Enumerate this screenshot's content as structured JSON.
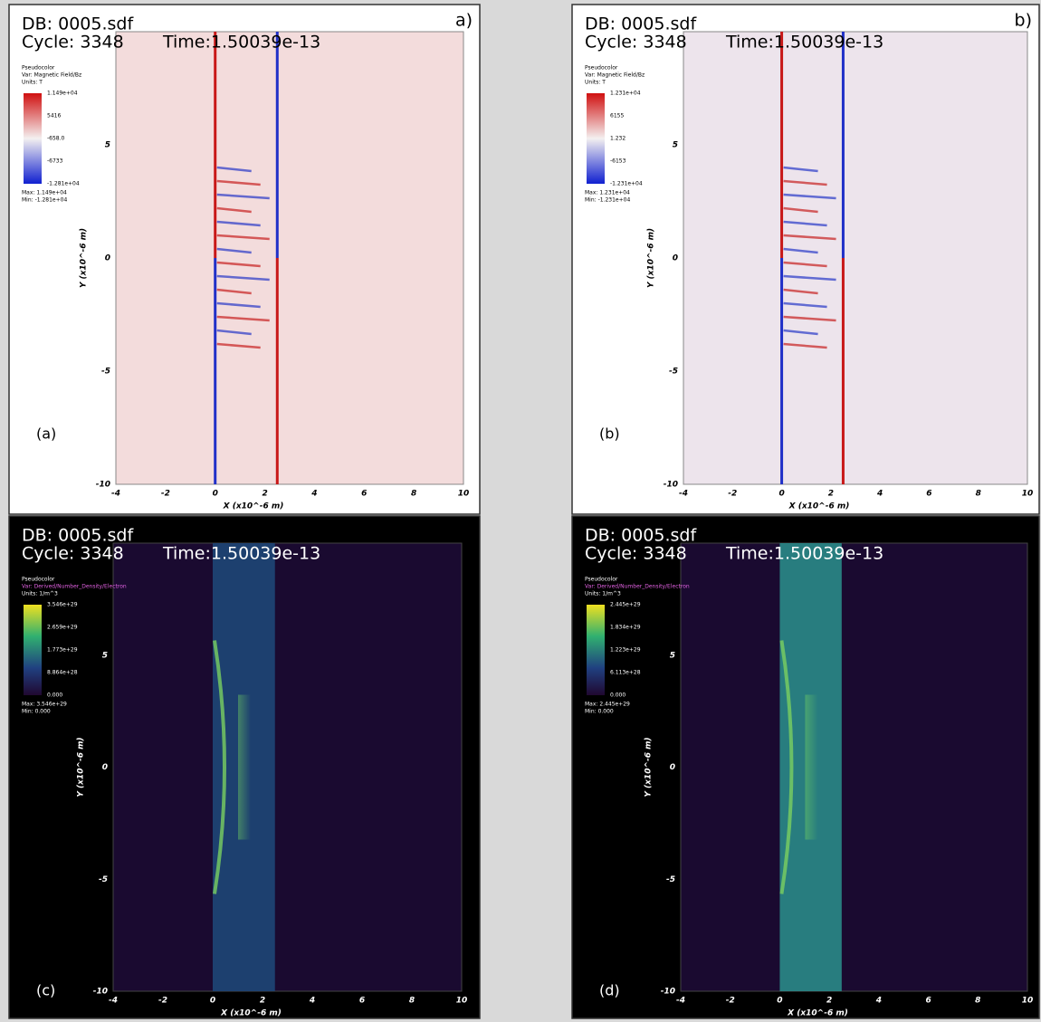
{
  "panels": [
    {
      "corner_label": "a)",
      "db": "DB: 0005.sdf",
      "cycle": "Cycle: 3348",
      "time": "Time:1.50039e-13",
      "legend": {
        "lines": [
          "Pseudocolor",
          "Var: Magnetic Field/Bz",
          "Units: T"
        ],
        "values": [
          "1.149e+04",
          "5416",
          "-658.0",
          "-6733",
          "-1.281e+04"
        ],
        "max": "Max: 1.149e+04",
        "min": "Min: -1.281e+04"
      },
      "panel_label": "(a)",
      "x_ticks": [
        "-4",
        "-2",
        "0",
        "2",
        "4",
        "6",
        "8",
        "10"
      ],
      "y_ticks": [
        "5",
        "0",
        "-5",
        "-10"
      ],
      "x_label": "X (x10^-6 m)",
      "y_label": "Y (x10^-6 m)"
    },
    {
      "corner_label": "b)",
      "db": "DB: 0005.sdf",
      "cycle": "Cycle: 3348",
      "time": "Time:1.50039e-13",
      "legend": {
        "lines": [
          "Pseudocolor",
          "Var: Magnetic Field/Bz",
          "Units: T"
        ],
        "values": [
          "1.231e+04",
          "6155",
          "1.232",
          "-6153",
          "-1.231e+04"
        ],
        "max": "Max: 1.231e+04",
        "min": "Min: -1.231e+04"
      },
      "panel_label": "(b)",
      "x_ticks": [
        "-4",
        "-2",
        "0",
        "2",
        "4",
        "6",
        "8",
        "10"
      ],
      "y_ticks": [
        "5",
        "0",
        "-5",
        "-10"
      ],
      "x_label": "X (x10^-6 m)",
      "y_label": "Y (x10^-6 m)"
    },
    {
      "db": "DB: 0005.sdf",
      "cycle": "Cycle: 3348",
      "time": "Time:1.50039e-13",
      "legend": {
        "lines": [
          "Pseudocolor",
          "Var: Derived/Number_Density/Electron",
          "Units: 1/m^3"
        ],
        "values": [
          "3.546e+29",
          "2.659e+29",
          "1.773e+29",
          "8.864e+28",
          "0.000"
        ],
        "max": "Max: 3.546e+29",
        "min": "Min: 0.000"
      },
      "panel_label": "(c)",
      "x_ticks": [
        "-4",
        "-2",
        "0",
        "2",
        "4",
        "6",
        "8",
        "10"
      ],
      "y_ticks": [
        "5",
        "0",
        "-5",
        "-10"
      ],
      "x_label": "X (x10^-6 m)",
      "y_label": "Y (x10^-6 m)"
    },
    {
      "db": "DB: 0005.sdf",
      "cycle": "Cycle: 3348",
      "time": "Time:1.50039e-13",
      "legend": {
        "lines": [
          "Pseudocolor",
          "Var: Derived/Number_Density/Electron",
          "Units: 1/m^3"
        ],
        "values": [
          "2.445e+29",
          "1.834e+29",
          "1.223e+29",
          "6.113e+28",
          "0.000"
        ],
        "max": "Max: 2.445e+29",
        "min": "Min: 0.000"
      },
      "panel_label": "(d)",
      "x_ticks": [
        "-4",
        "-2",
        "0",
        "2",
        "4",
        "6",
        "8",
        "10"
      ],
      "y_ticks": [
        "5",
        "0",
        "-5",
        "-10"
      ],
      "x_label": "X (x10^-6 m)",
      "y_label": "Y (x10^-6 m)"
    }
  ]
}
